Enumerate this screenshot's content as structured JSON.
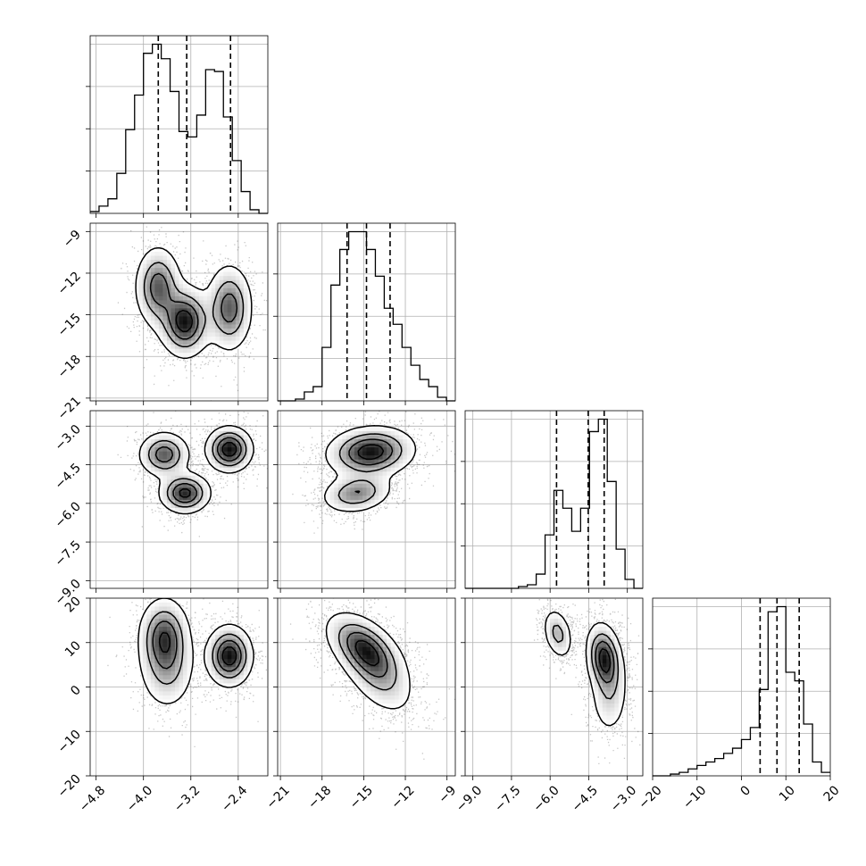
{
  "chart_data": {
    "type": "corner",
    "n_params": 4,
    "grid": true,
    "params": [
      {
        "range": [
          -4.9,
          -1.9
        ],
        "ticks": [
          -4.8,
          -4.0,
          -3.2,
          -2.4
        ],
        "tick_labels": [
          "−4.8",
          "−4.0",
          "−3.2",
          "−2.4"
        ]
      },
      {
        "range": [
          -21.2,
          -8.4
        ],
        "ticks": [
          -21,
          -18,
          -15,
          -12,
          -9
        ],
        "tick_labels": [
          "−21",
          "−18",
          "−15",
          "−12",
          "−9"
        ]
      },
      {
        "range": [
          -9.3,
          -2.4
        ],
        "ticks": [
          -9.0,
          -7.5,
          -6.0,
          -4.5,
          -3.0
        ],
        "tick_labels": [
          "−9.0",
          "−7.5",
          "−6.0",
          "−4.5",
          "−3.0"
        ]
      },
      {
        "range": [
          -20,
          20
        ],
        "ticks": [
          -20,
          -10,
          0,
          10,
          20
        ],
        "tick_labels": [
          "−20",
          "−10",
          "0",
          "10",
          "20"
        ]
      }
    ],
    "histograms": [
      {
        "param": 0,
        "bins": [
          -4.9,
          -4.75,
          -4.6,
          -4.45,
          -4.3,
          -4.15,
          -4.0,
          -3.85,
          -3.7,
          -3.55,
          -3.4,
          -3.25,
          -3.1,
          -2.95,
          -2.8,
          -2.65,
          -2.5,
          -2.35,
          -2.2,
          -2.05,
          -1.9
        ],
        "counts": [
          0.01,
          0.04,
          0.08,
          0.22,
          0.46,
          0.65,
          0.88,
          0.93,
          0.85,
          0.67,
          0.45,
          0.42,
          0.54,
          0.79,
          0.78,
          0.53,
          0.29,
          0.12,
          0.02,
          0.0
        ],
        "quantiles": [
          -3.75,
          -3.27,
          -2.53
        ]
      },
      {
        "param": 1,
        "bins": [
          -21.2,
          -20.56,
          -19.92,
          -19.28,
          -18.64,
          -18.0,
          -17.36,
          -16.72,
          -16.08,
          -15.44,
          -14.8,
          -14.16,
          -13.52,
          -12.88,
          -12.24,
          -11.6,
          -10.96,
          -10.32,
          -9.68,
          -9.04,
          -8.4
        ],
        "counts": [
          0.0,
          0.0,
          0.01,
          0.05,
          0.08,
          0.3,
          0.65,
          0.85,
          0.95,
          0.95,
          0.85,
          0.7,
          0.52,
          0.43,
          0.3,
          0.2,
          0.12,
          0.08,
          0.02,
          0.0
        ],
        "quantiles": [
          -16.2,
          -14.8,
          -13.1
        ]
      },
      {
        "param": 2,
        "bins": [
          -9.3,
          -8.955,
          -8.61,
          -8.265,
          -7.92,
          -7.575,
          -7.23,
          -6.885,
          -6.54,
          -6.195,
          -5.85,
          -5.505,
          -5.16,
          -4.815,
          -4.47,
          -4.125,
          -3.78,
          -3.435,
          -3.09,
          -2.745,
          -2.4
        ],
        "counts": [
          0.0,
          0.0,
          0.0,
          0.0,
          0.0,
          0.0,
          0.01,
          0.02,
          0.08,
          0.3,
          0.55,
          0.45,
          0.32,
          0.45,
          0.88,
          0.95,
          0.6,
          0.22,
          0.05,
          0.0
        ],
        "quantiles": [
          -5.75,
          -4.52,
          -3.9
        ]
      },
      {
        "param": 3,
        "bins": [
          -20,
          -18,
          -16,
          -14,
          -12,
          -10,
          -8,
          -6,
          -4,
          -2,
          0,
          2,
          4,
          6,
          8,
          10,
          12,
          14,
          16,
          18,
          20
        ],
        "counts": [
          0.0,
          0.0,
          0.01,
          0.02,
          0.04,
          0.06,
          0.08,
          0.1,
          0.13,
          0.16,
          0.21,
          0.28,
          0.5,
          0.95,
          0.98,
          0.6,
          0.55,
          0.3,
          0.08,
          0.02
        ],
        "quantiles": [
          4.2,
          8.0,
          13.0
        ]
      }
    ],
    "pairs": [
      {
        "x": 0,
        "y": 1,
        "modes": [
          {
            "x": -3.75,
            "y": -13.0,
            "sx": 0.2,
            "sy": 1.5,
            "rho": 0.0,
            "w": 1.0
          },
          {
            "x": -3.3,
            "y": -15.5,
            "sx": 0.22,
            "sy": 1.3,
            "rho": 0.0,
            "w": 1.3
          },
          {
            "x": -2.55,
            "y": -14.5,
            "sx": 0.2,
            "sy": 1.6,
            "rho": 0.0,
            "w": 1.0
          }
        ]
      },
      {
        "x": 0,
        "y": 2,
        "modes": [
          {
            "x": -3.65,
            "y": -4.1,
            "sx": 0.22,
            "sy": 0.45,
            "rho": 0.0,
            "w": 0.9
          },
          {
            "x": -3.3,
            "y": -5.6,
            "sx": 0.22,
            "sy": 0.4,
            "rho": 0.0,
            "w": 1.1
          },
          {
            "x": -2.55,
            "y": -3.9,
            "sx": 0.2,
            "sy": 0.45,
            "rho": 0.0,
            "w": 1.2
          }
        ]
      },
      {
        "x": 1,
        "y": 2,
        "modes": [
          {
            "x": -14.5,
            "y": -4.0,
            "sx": 1.6,
            "sy": 0.5,
            "rho": 0.1,
            "w": 1.6
          },
          {
            "x": -15.5,
            "y": -5.6,
            "sx": 1.3,
            "sy": 0.4,
            "rho": 0.2,
            "w": 1.0
          }
        ]
      },
      {
        "x": 0,
        "y": 3,
        "modes": [
          {
            "x": -3.65,
            "y": 11.5,
            "sx": 0.22,
            "sy": 4.5,
            "rho": 0.0,
            "w": 0.9
          },
          {
            "x": -3.6,
            "y": 4.0,
            "sx": 0.25,
            "sy": 5.0,
            "rho": 0.0,
            "w": 0.5
          },
          {
            "x": -2.55,
            "y": 7.0,
            "sx": 0.2,
            "sy": 3.5,
            "rho": 0.0,
            "w": 1.2
          }
        ]
      },
      {
        "x": 1,
        "y": 3,
        "modes": [
          {
            "x": -15.0,
            "y": 9.0,
            "sx": 1.4,
            "sy": 4.0,
            "rho": -0.5,
            "w": 1.2
          },
          {
            "x": -14.0,
            "y": 3.0,
            "sx": 1.4,
            "sy": 5.0,
            "rho": -0.5,
            "w": 0.7
          }
        ]
      },
      {
        "x": 2,
        "y": 3,
        "modes": [
          {
            "x": -5.7,
            "y": 12.0,
            "sx": 0.3,
            "sy": 3.0,
            "rho": -0.3,
            "w": 0.6
          },
          {
            "x": -3.9,
            "y": 6.5,
            "sx": 0.35,
            "sy": 4.0,
            "rho": -0.2,
            "w": 1.2
          },
          {
            "x": -3.7,
            "y": -2.0,
            "sx": 0.4,
            "sy": 5.0,
            "rho": 0.0,
            "w": 0.4
          }
        ]
      }
    ]
  }
}
